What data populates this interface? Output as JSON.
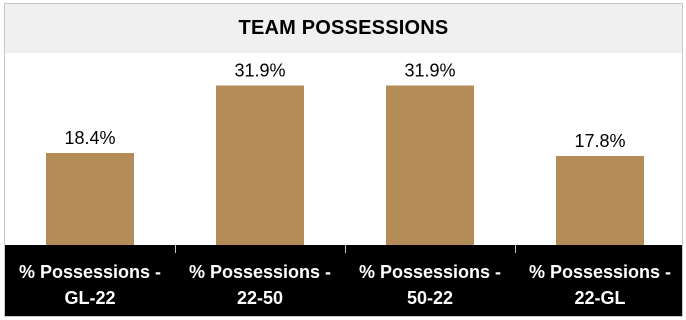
{
  "header": {
    "title": "TEAM POSSESSIONS"
  },
  "chart_data": {
    "type": "bar",
    "title": "TEAM POSSESSIONS",
    "categories": [
      [
        "% Possessions -",
        "GL-22"
      ],
      [
        "% Possessions -",
        "22-50"
      ],
      [
        "% Possessions -",
        "50-22"
      ],
      [
        "% Possessions -",
        "22-GL"
      ]
    ],
    "values": [
      18.4,
      31.9,
      31.9,
      17.8
    ],
    "value_labels": [
      "18.4%",
      "31.9%",
      "31.9%",
      "17.8%"
    ],
    "ylim": [
      0,
      35
    ],
    "grid": false,
    "bar_color": "#b38c58",
    "axis_band_color": "#000000",
    "header_band_color": "#f0f0f0"
  }
}
